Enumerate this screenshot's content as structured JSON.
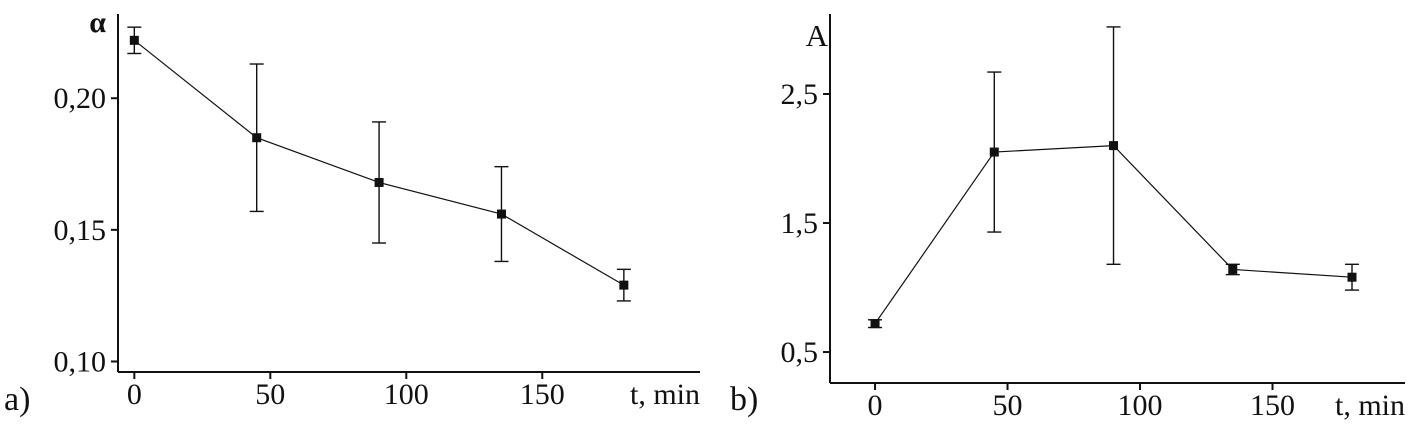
{
  "colors": {
    "ink": "#111111",
    "background": "#ffffff"
  },
  "chart_data": [
    {
      "type": "line",
      "panel_label": "a)",
      "title": "",
      "ylabel": "α",
      "xlabel": "t, min",
      "x": [
        0,
        45,
        90,
        135,
        180
      ],
      "y": [
        0.222,
        0.185,
        0.168,
        0.156,
        0.129
      ],
      "y_err": [
        0.005,
        0.028,
        0.023,
        0.018,
        0.006
      ],
      "xlim": [
        -6,
        208
      ],
      "ylim": [
        0.096,
        0.232
      ],
      "xticks": [
        0,
        50,
        100,
        150
      ],
      "xtick_labels": [
        "0",
        "50",
        "100",
        "150"
      ],
      "yticks": [
        0.1,
        0.15,
        0.2
      ],
      "ytick_labels": [
        "0,10",
        "0,15",
        "0,20"
      ],
      "marker": "filled-square",
      "error_bars": true,
      "grid": false,
      "legend": null
    },
    {
      "type": "line",
      "panel_label": "b)",
      "title": "",
      "ylabel": "A",
      "xlabel": "t, min",
      "x": [
        0,
        45,
        90,
        135,
        180
      ],
      "y": [
        0.72,
        2.05,
        2.1,
        1.14,
        1.08
      ],
      "y_err": [
        0.03,
        0.62,
        0.92,
        0.04,
        0.1
      ],
      "xlim": [
        -17,
        200
      ],
      "ylim": [
        0.26,
        3.12
      ],
      "xticks": [
        0,
        50,
        100,
        150
      ],
      "xtick_labels": [
        "0",
        "50",
        "100",
        "150"
      ],
      "yticks": [
        0.5,
        1.5,
        2.5
      ],
      "ytick_labels": [
        "0,5",
        "1,5",
        "2,5"
      ],
      "marker": "filled-square",
      "error_bars": true,
      "grid": false,
      "legend": null
    }
  ]
}
